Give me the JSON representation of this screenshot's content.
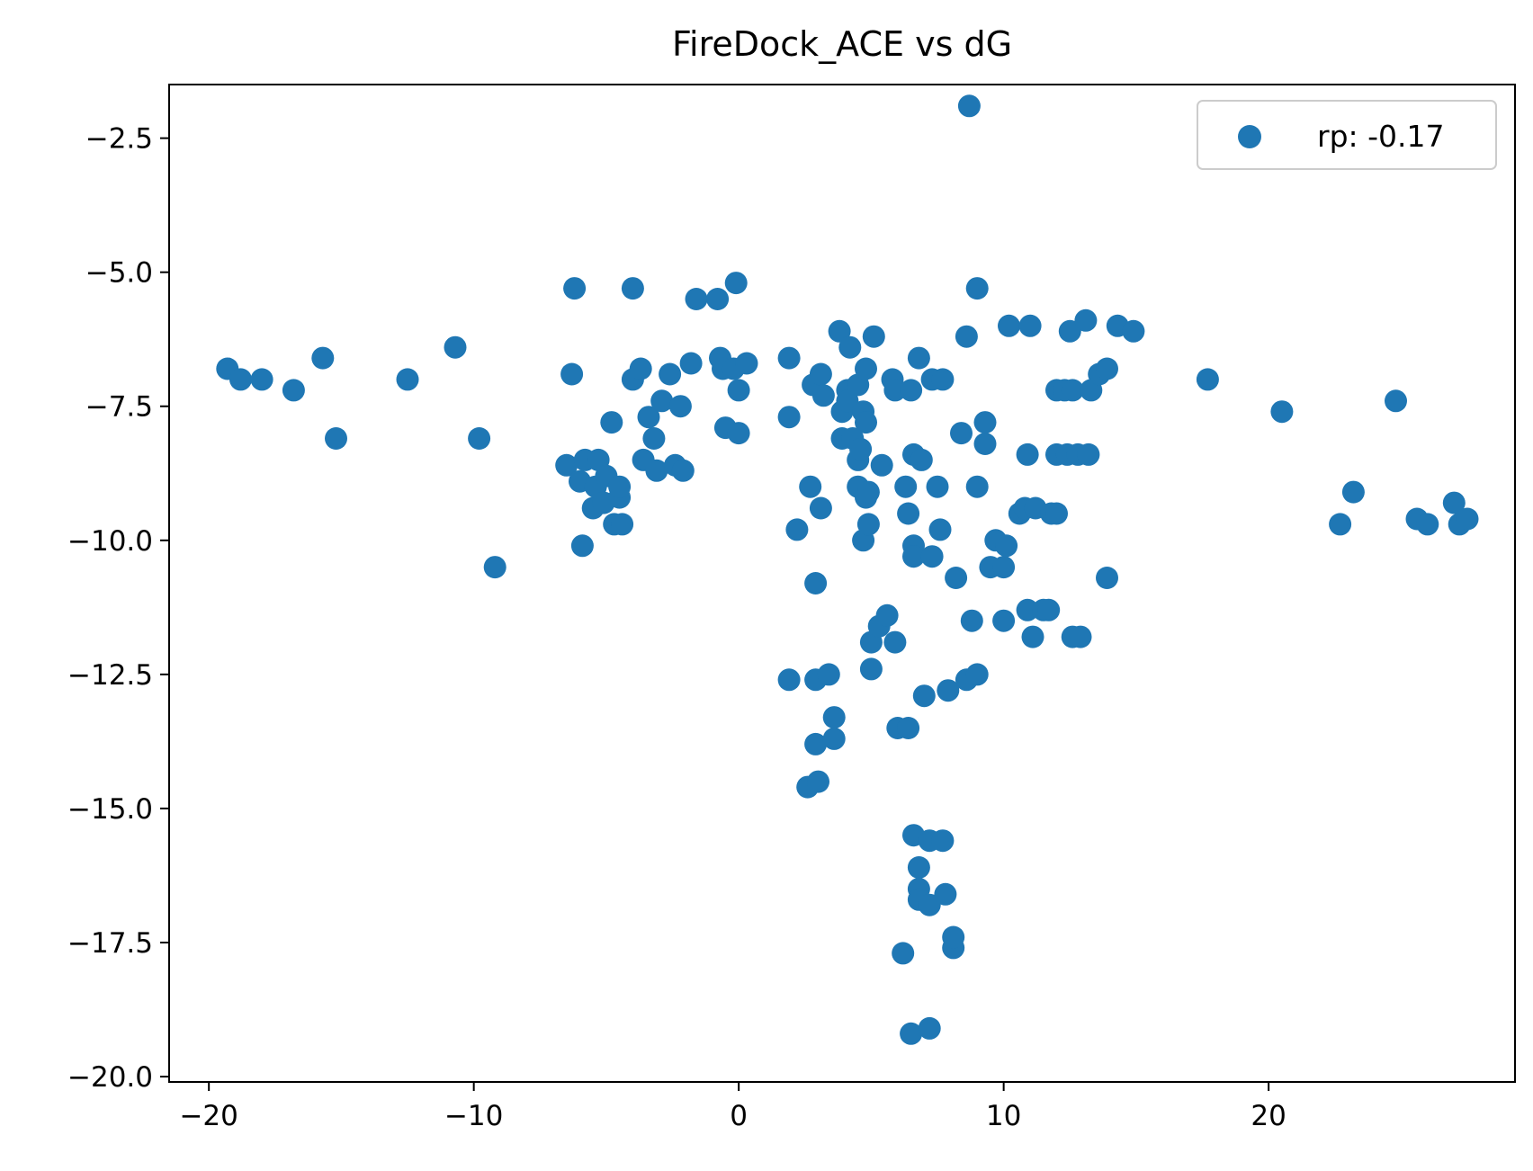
{
  "chart_data": {
    "type": "scatter",
    "title": "FireDock_ACE vs dG",
    "xlabel": "",
    "ylabel": "",
    "xlim": [
      -21.5,
      29.3
    ],
    "ylim": [
      -20.1,
      -1.5
    ],
    "x_ticks": [
      -20,
      -10,
      0,
      10,
      20
    ],
    "x_tick_labels": [
      "−20",
      "−10",
      "0",
      "10",
      "20"
    ],
    "y_ticks": [
      -2.5,
      -5.0,
      -7.5,
      -10.0,
      -12.5,
      -15.0,
      -17.5,
      -20.0
    ],
    "y_tick_labels": [
      "−2.5",
      "−5.0",
      "−7.5",
      "−10.0",
      "−12.5",
      "−15.0",
      "−17.5",
      "−20.0"
    ],
    "grid": false,
    "legend_position": "top-right",
    "series": [
      {
        "name": "rp: -0.17",
        "color": "#1f77b4",
        "points": [
          [
            -19.3,
            -6.8
          ],
          [
            -18.8,
            -7.0
          ],
          [
            -18.0,
            -7.0
          ],
          [
            -16.8,
            -7.2
          ],
          [
            -15.7,
            -6.6
          ],
          [
            -15.2,
            -8.1
          ],
          [
            -12.5,
            -7.0
          ],
          [
            -10.7,
            -6.4
          ],
          [
            -9.8,
            -8.1
          ],
          [
            -9.2,
            -10.5
          ],
          [
            -6.5,
            -8.6
          ],
          [
            -6.3,
            -6.9
          ],
          [
            -6.2,
            -5.3
          ],
          [
            -6.0,
            -8.9
          ],
          [
            -5.9,
            -10.1
          ],
          [
            -5.8,
            -8.5
          ],
          [
            -5.5,
            -9.4
          ],
          [
            -5.4,
            -9.0
          ],
          [
            -5.3,
            -8.5
          ],
          [
            -5.1,
            -9.3
          ],
          [
            -5.0,
            -8.8
          ],
          [
            -4.8,
            -7.8
          ],
          [
            -4.7,
            -9.7
          ],
          [
            -4.5,
            -9.2
          ],
          [
            -4.5,
            -9.0
          ],
          [
            -4.4,
            -9.7
          ],
          [
            -4.0,
            -5.3
          ],
          [
            -4.0,
            -7.0
          ],
          [
            -3.7,
            -6.8
          ],
          [
            -3.6,
            -8.5
          ],
          [
            -3.4,
            -7.7
          ],
          [
            -3.2,
            -8.1
          ],
          [
            -3.1,
            -8.7
          ],
          [
            -2.9,
            -7.4
          ],
          [
            -2.6,
            -6.9
          ],
          [
            -2.4,
            -8.6
          ],
          [
            -2.2,
            -7.5
          ],
          [
            -2.1,
            -8.7
          ],
          [
            -1.8,
            -6.7
          ],
          [
            -1.6,
            -5.5
          ],
          [
            -0.8,
            -5.5
          ],
          [
            -0.7,
            -6.6
          ],
          [
            -0.6,
            -6.8
          ],
          [
            -0.5,
            -7.9
          ],
          [
            -0.2,
            -6.8
          ],
          [
            -0.1,
            -5.2
          ],
          [
            0.0,
            -8.0
          ],
          [
            0.0,
            -7.2
          ],
          [
            0.3,
            -6.7
          ],
          [
            1.9,
            -6.6
          ],
          [
            1.9,
            -7.7
          ],
          [
            1.9,
            -12.6
          ],
          [
            2.2,
            -9.8
          ],
          [
            2.6,
            -14.6
          ],
          [
            2.7,
            -9.0
          ],
          [
            2.8,
            -7.1
          ],
          [
            2.9,
            -10.8
          ],
          [
            2.9,
            -12.6
          ],
          [
            2.9,
            -13.8
          ],
          [
            3.0,
            -14.5
          ],
          [
            3.1,
            -6.9
          ],
          [
            3.1,
            -9.4
          ],
          [
            3.2,
            -7.3
          ],
          [
            3.4,
            -12.5
          ],
          [
            3.6,
            -13.3
          ],
          [
            3.6,
            -13.7
          ],
          [
            3.8,
            -6.1
          ],
          [
            3.9,
            -7.6
          ],
          [
            3.9,
            -8.1
          ],
          [
            4.1,
            -7.2
          ],
          [
            4.1,
            -7.4
          ],
          [
            4.2,
            -6.4
          ],
          [
            4.3,
            -8.1
          ],
          [
            4.5,
            -7.1
          ],
          [
            4.5,
            -8.5
          ],
          [
            4.5,
            -9.0
          ],
          [
            4.6,
            -8.3
          ],
          [
            4.7,
            -7.6
          ],
          [
            4.7,
            -10.0
          ],
          [
            4.8,
            -6.8
          ],
          [
            4.8,
            -7.8
          ],
          [
            4.8,
            -9.2
          ],
          [
            4.9,
            -9.1
          ],
          [
            4.9,
            -9.7
          ],
          [
            5.0,
            -11.9
          ],
          [
            5.0,
            -12.4
          ],
          [
            5.1,
            -6.2
          ],
          [
            5.3,
            -11.6
          ],
          [
            5.4,
            -8.6
          ],
          [
            5.6,
            -11.4
          ],
          [
            5.8,
            -7.0
          ],
          [
            5.9,
            -7.2
          ],
          [
            5.9,
            -11.9
          ],
          [
            6.0,
            -13.5
          ],
          [
            6.2,
            -17.7
          ],
          [
            6.3,
            -9.0
          ],
          [
            6.4,
            -13.5
          ],
          [
            6.4,
            -9.5
          ],
          [
            6.5,
            -7.2
          ],
          [
            6.5,
            -19.2
          ],
          [
            6.6,
            -10.1
          ],
          [
            6.6,
            -10.3
          ],
          [
            6.6,
            -15.5
          ],
          [
            6.6,
            -8.4
          ],
          [
            6.8,
            -6.6
          ],
          [
            6.8,
            -16.1
          ],
          [
            6.8,
            -16.5
          ],
          [
            6.8,
            -16.7
          ],
          [
            6.9,
            -8.5
          ],
          [
            7.0,
            -12.9
          ],
          [
            7.2,
            -15.6
          ],
          [
            7.2,
            -19.1
          ],
          [
            7.3,
            -10.3
          ],
          [
            7.2,
            -16.8
          ],
          [
            7.3,
            -7.0
          ],
          [
            7.5,
            -9.0
          ],
          [
            7.6,
            -9.8
          ],
          [
            7.7,
            -7.0
          ],
          [
            7.7,
            -15.6
          ],
          [
            7.8,
            -16.6
          ],
          [
            7.9,
            -12.8
          ],
          [
            8.1,
            -17.6
          ],
          [
            8.1,
            -17.4
          ],
          [
            8.2,
            -10.7
          ],
          [
            8.4,
            -8.0
          ],
          [
            8.6,
            -12.6
          ],
          [
            8.6,
            -6.2
          ],
          [
            8.7,
            -1.9
          ],
          [
            8.8,
            -11.5
          ],
          [
            9.0,
            -5.3
          ],
          [
            9.0,
            -9.0
          ],
          [
            9.0,
            -12.5
          ],
          [
            9.3,
            -8.2
          ],
          [
            9.3,
            -7.8
          ],
          [
            9.5,
            -10.5
          ],
          [
            9.7,
            -10.0
          ],
          [
            10.0,
            -10.5
          ],
          [
            10.0,
            -11.5
          ],
          [
            10.1,
            -10.1
          ],
          [
            10.2,
            -6.0
          ],
          [
            10.6,
            -9.5
          ],
          [
            10.8,
            -9.4
          ],
          [
            10.9,
            -11.3
          ],
          [
            10.9,
            -8.4
          ],
          [
            11.0,
            -6.0
          ],
          [
            11.1,
            -11.8
          ],
          [
            11.2,
            -9.4
          ],
          [
            11.5,
            -11.3
          ],
          [
            11.7,
            -11.3
          ],
          [
            11.8,
            -9.5
          ],
          [
            12.0,
            -9.5
          ],
          [
            12.0,
            -7.2
          ],
          [
            12.0,
            -8.4
          ],
          [
            12.3,
            -7.2
          ],
          [
            12.4,
            -8.4
          ],
          [
            12.5,
            -6.1
          ],
          [
            12.6,
            -7.2
          ],
          [
            12.6,
            -11.8
          ],
          [
            12.8,
            -8.4
          ],
          [
            12.9,
            -11.8
          ],
          [
            13.1,
            -5.9
          ],
          [
            13.2,
            -8.4
          ],
          [
            13.3,
            -7.2
          ],
          [
            13.6,
            -6.9
          ],
          [
            13.9,
            -6.8
          ],
          [
            13.9,
            -10.7
          ],
          [
            14.3,
            -6.0
          ],
          [
            14.9,
            -6.1
          ],
          [
            17.7,
            -7.0
          ],
          [
            20.5,
            -7.6
          ],
          [
            22.7,
            -9.7
          ],
          [
            23.2,
            -9.1
          ],
          [
            24.8,
            -7.4
          ],
          [
            25.6,
            -9.6
          ],
          [
            26.0,
            -9.7
          ],
          [
            27.0,
            -9.3
          ],
          [
            27.2,
            -9.7
          ],
          [
            27.5,
            -9.6
          ]
        ]
      }
    ]
  }
}
